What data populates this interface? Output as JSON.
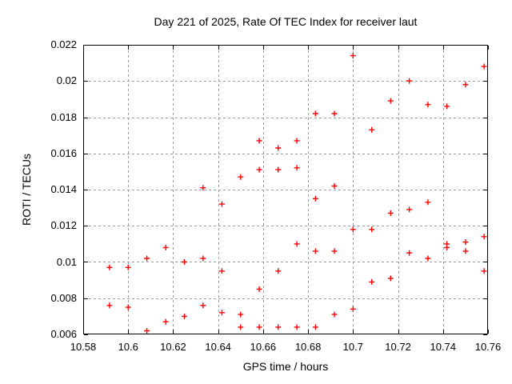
{
  "chart_data": {
    "type": "scatter",
    "title": "Day 221 of 2025, Rate Of TEC Index for receiver laut",
    "xlabel": "GPS time / hours",
    "ylabel": "ROTI / TECUs",
    "xlim": [
      10.58,
      10.76
    ],
    "ylim": [
      0.006,
      0.022
    ],
    "x_tick_values": [
      10.58,
      10.6,
      10.62,
      10.64,
      10.66,
      10.68,
      10.7,
      10.72,
      10.74,
      10.76
    ],
    "x_tick_labels": [
      "10.58",
      "10.6",
      "10.62",
      "10.64",
      "10.66",
      "10.68",
      "10.7",
      "10.72",
      "10.74",
      "10.76"
    ],
    "y_tick_values": [
      0.006,
      0.008,
      0.01,
      0.012,
      0.014,
      0.016,
      0.018,
      0.02,
      0.022
    ],
    "y_tick_labels": [
      "0.006",
      "0.008",
      "0.01",
      "0.012",
      "0.014",
      "0.016",
      "0.018",
      "0.02",
      "0.022"
    ],
    "grid": true,
    "legend": "none",
    "marker": {
      "shape": "plus",
      "color": "#ff0000",
      "size": 7
    },
    "colors": {
      "background": "#ffffff",
      "border": "#000000",
      "grid": "#9c9c9c",
      "text": "#000000",
      "points": "#ff0000"
    },
    "points": [
      [
        10.5917,
        0.0097
      ],
      [
        10.5917,
        0.0076
      ],
      [
        10.6,
        0.0097
      ],
      [
        10.6,
        0.0075
      ],
      [
        10.6083,
        0.0102
      ],
      [
        10.6083,
        0.0062
      ],
      [
        10.6167,
        0.0108
      ],
      [
        10.6167,
        0.0067
      ],
      [
        10.625,
        0.01
      ],
      [
        10.625,
        0.007
      ],
      [
        10.6333,
        0.0141
      ],
      [
        10.6333,
        0.0102
      ],
      [
        10.6333,
        0.0076
      ],
      [
        10.6417,
        0.0132
      ],
      [
        10.6417,
        0.0095
      ],
      [
        10.6417,
        0.0072
      ],
      [
        10.65,
        0.0147
      ],
      [
        10.65,
        0.0071
      ],
      [
        10.65,
        0.0064
      ],
      [
        10.6583,
        0.0167
      ],
      [
        10.6583,
        0.0151
      ],
      [
        10.6583,
        0.0085
      ],
      [
        10.6583,
        0.0064
      ],
      [
        10.6667,
        0.0163
      ],
      [
        10.6667,
        0.0151
      ],
      [
        10.6667,
        0.0095
      ],
      [
        10.6667,
        0.0064
      ],
      [
        10.675,
        0.0167
      ],
      [
        10.675,
        0.0152
      ],
      [
        10.675,
        0.011
      ],
      [
        10.675,
        0.0064
      ],
      [
        10.6833,
        0.0182
      ],
      [
        10.6833,
        0.0135
      ],
      [
        10.6833,
        0.0106
      ],
      [
        10.6833,
        0.0064
      ],
      [
        10.6917,
        0.0182
      ],
      [
        10.6917,
        0.0142
      ],
      [
        10.6917,
        0.0106
      ],
      [
        10.6917,
        0.0071
      ],
      [
        10.7,
        0.0214
      ],
      [
        10.7,
        0.0118
      ],
      [
        10.7,
        0.0074
      ],
      [
        10.7083,
        0.0173
      ],
      [
        10.7083,
        0.0118
      ],
      [
        10.7083,
        0.0089
      ],
      [
        10.7167,
        0.0189
      ],
      [
        10.7167,
        0.0127
      ],
      [
        10.7167,
        0.0091
      ],
      [
        10.725,
        0.02
      ],
      [
        10.725,
        0.0129
      ],
      [
        10.725,
        0.0105
      ],
      [
        10.7333,
        0.0187
      ],
      [
        10.7333,
        0.0133
      ],
      [
        10.7333,
        0.0102
      ],
      [
        10.7417,
        0.0186
      ],
      [
        10.7417,
        0.011
      ],
      [
        10.7417,
        0.0108
      ],
      [
        10.75,
        0.0198
      ],
      [
        10.75,
        0.0111
      ],
      [
        10.75,
        0.0106
      ],
      [
        10.7583,
        0.0208
      ],
      [
        10.7583,
        0.0114
      ],
      [
        10.7583,
        0.0095
      ]
    ]
  }
}
